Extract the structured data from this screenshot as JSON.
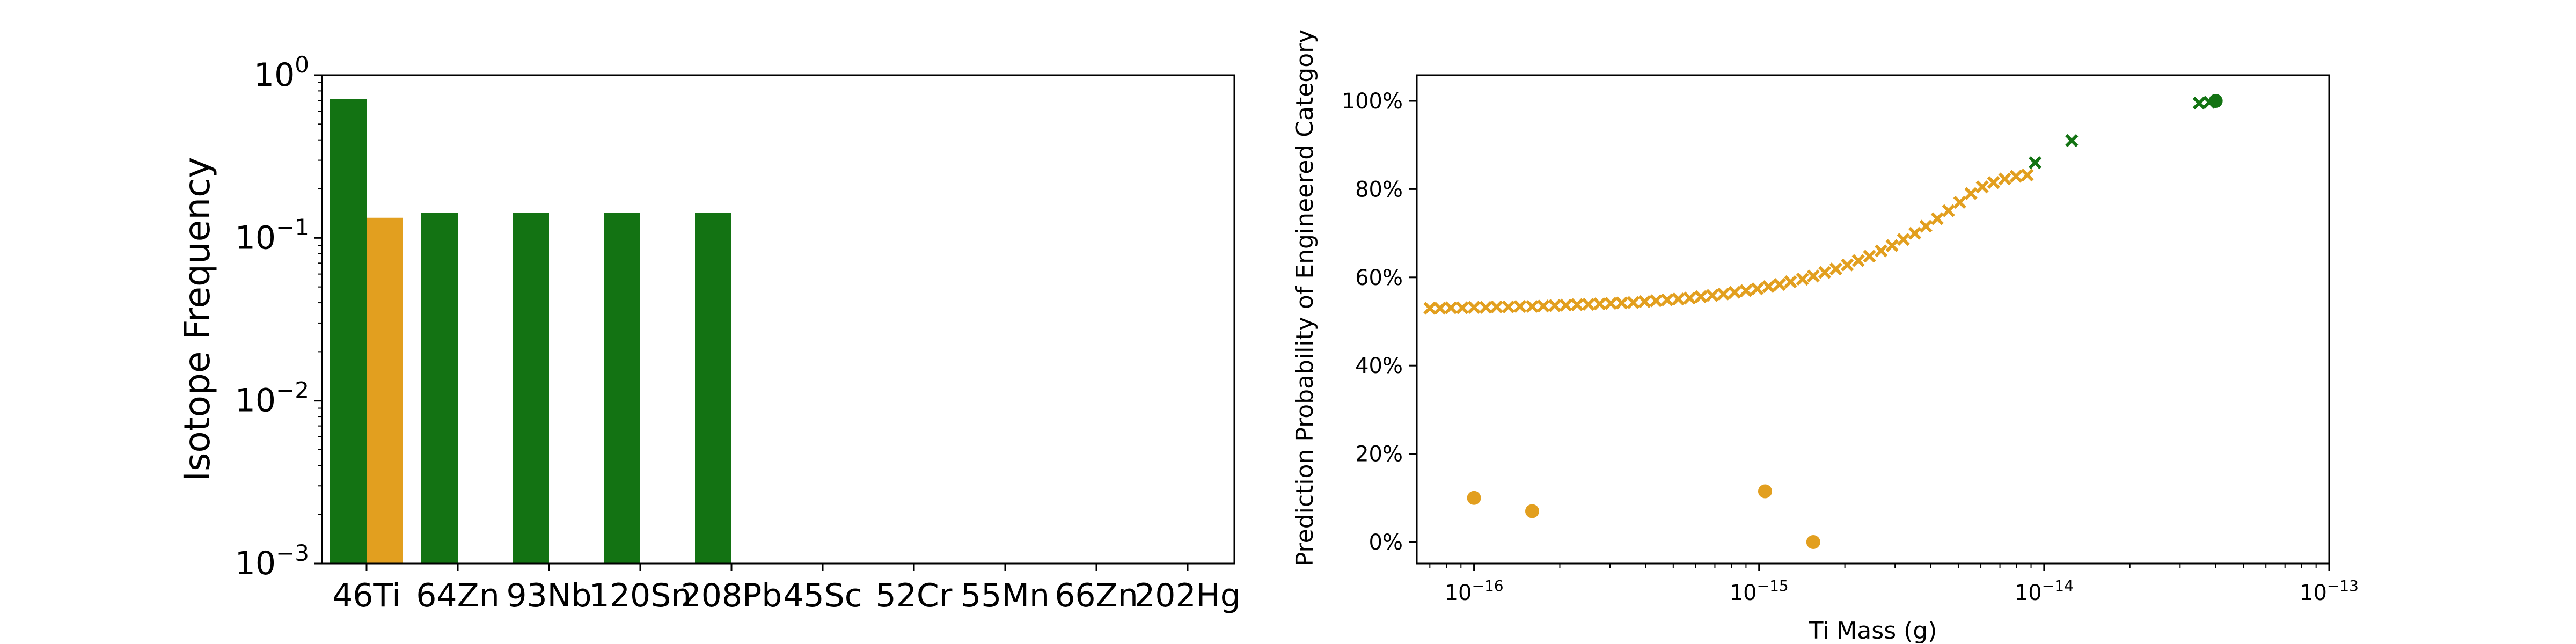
{
  "figure": {
    "colors": {
      "green": "#137313",
      "orange": "#e29f1f",
      "axis": "#000000"
    }
  },
  "chart_data": [
    {
      "type": "bar",
      "ylabel": "Isotope Frequency",
      "yscale": "log",
      "ylim": [
        0.001,
        1
      ],
      "ytick_labels": [
        {
          "base": "10",
          "exp": "0",
          "value": 1
        },
        {
          "base": "10",
          "exp": "−1",
          "value": 0.1
        },
        {
          "base": "10",
          "exp": "−2",
          "value": 0.01
        },
        {
          "base": "10",
          "exp": "−3",
          "value": 0.001
        }
      ],
      "categories": [
        "46Ti",
        "64Zn",
        "93Nb",
        "120Sn",
        "208Pb",
        "45Sc",
        "52Cr",
        "55Mn",
        "66Zn",
        "202Hg"
      ],
      "series": [
        {
          "color": "#137313",
          "values": [
            0.714,
            0.143,
            0.143,
            0.143,
            0.143,
            null,
            null,
            null,
            null,
            null
          ]
        },
        {
          "color": "#e29f1f",
          "values": [
            0.133,
            null,
            null,
            null,
            null,
            null,
            null,
            null,
            null,
            null
          ]
        }
      ]
    },
    {
      "type": "scatter",
      "xlabel": "Ti Mass (g)",
      "ylabel": "Prediction Probability of Engineered Category",
      "xscale": "log",
      "xlim": [
        6.3e-17,
        1e-13
      ],
      "ylim": [
        0,
        1
      ],
      "xtick_labels": [
        {
          "base": "10",
          "exp": "−16",
          "value": 1e-16
        },
        {
          "base": "10",
          "exp": "−15",
          "value": 1e-15
        },
        {
          "base": "10",
          "exp": "−14",
          "value": 1e-14
        },
        {
          "base": "10",
          "exp": "−13",
          "value": 1e-13
        }
      ],
      "ytick_labels": [
        {
          "label": "0%",
          "value": 0
        },
        {
          "label": "20%",
          "value": 0.2
        },
        {
          "label": "40%",
          "value": 0.4
        },
        {
          "label": "60%",
          "value": 0.6
        },
        {
          "label": "80%",
          "value": 0.8
        },
        {
          "label": "100%",
          "value": 1
        }
      ],
      "series": [
        {
          "marker": "x",
          "color": "#e29f1f",
          "points": [
            [
              7e-17,
              0.53
            ],
            [
              7.6e-17,
              0.53
            ],
            [
              8.3e-17,
              0.531
            ],
            [
              9.1e-17,
              0.531
            ],
            [
              1e-16,
              0.532
            ],
            [
              1.1e-16,
              0.532
            ],
            [
              1.2e-16,
              0.533
            ],
            [
              1.32e-16,
              0.533
            ],
            [
              1.45e-16,
              0.534
            ],
            [
              1.6e-16,
              0.534
            ],
            [
              1.75e-16,
              0.535
            ],
            [
              1.92e-16,
              0.536
            ],
            [
              2.1e-16,
              0.537
            ],
            [
              2.3e-16,
              0.538
            ],
            [
              2.52e-16,
              0.539
            ],
            [
              2.76e-16,
              0.54
            ],
            [
              3.02e-16,
              0.541
            ],
            [
              3.3e-16,
              0.542
            ],
            [
              3.62e-16,
              0.543
            ],
            [
              3.97e-16,
              0.545
            ],
            [
              4.35e-16,
              0.547
            ],
            [
              4.76e-16,
              0.549
            ],
            [
              5.21e-16,
              0.551
            ],
            [
              5.71e-16,
              0.553
            ],
            [
              6.25e-16,
              0.556
            ],
            [
              6.85e-16,
              0.559
            ],
            [
              7.5e-16,
              0.562
            ],
            [
              8.21e-16,
              0.566
            ],
            [
              9e-16,
              0.57
            ],
            [
              9.86e-16,
              0.574
            ],
            [
              1.08e-15,
              0.579
            ],
            [
              1.18e-15,
              0.584
            ],
            [
              1.29e-15,
              0.59
            ],
            [
              1.42e-15,
              0.596
            ],
            [
              1.55e-15,
              0.603
            ],
            [
              1.7e-15,
              0.611
            ],
            [
              1.86e-15,
              0.619
            ],
            [
              2.04e-15,
              0.628
            ],
            [
              2.23e-15,
              0.638
            ],
            [
              2.44e-15,
              0.648
            ],
            [
              2.68e-15,
              0.66
            ],
            [
              2.93e-15,
              0.672
            ],
            [
              3.21e-15,
              0.686
            ],
            [
              3.52e-15,
              0.7
            ],
            [
              3.85e-15,
              0.716
            ],
            [
              4.22e-15,
              0.733
            ],
            [
              4.62e-15,
              0.751
            ],
            [
              5.06e-15,
              0.77
            ],
            [
              5.54e-15,
              0.79
            ],
            [
              6.07e-15,
              0.805
            ],
            [
              6.65e-15,
              0.815
            ],
            [
              7.28e-15,
              0.823
            ],
            [
              7.97e-15,
              0.829
            ],
            [
              8.73e-15,
              0.832
            ]
          ]
        },
        {
          "marker": "x",
          "color": "#137313",
          "points": [
            [
              9.3e-15,
              0.86
            ],
            [
              1.25e-14,
              0.91
            ],
            [
              3.5e-14,
              0.995
            ],
            [
              3.8e-14,
              0.997
            ]
          ]
        },
        {
          "marker": "o",
          "color": "#e29f1f",
          "points": [
            [
              1e-16,
              0.1
            ],
            [
              1.6e-16,
              0.07
            ],
            [
              1.05e-15,
              0.115
            ],
            [
              1.55e-15,
              0.0
            ]
          ]
        },
        {
          "marker": "o",
          "color": "#137313",
          "points": [
            [
              4e-14,
              1.0
            ]
          ]
        }
      ]
    }
  ]
}
